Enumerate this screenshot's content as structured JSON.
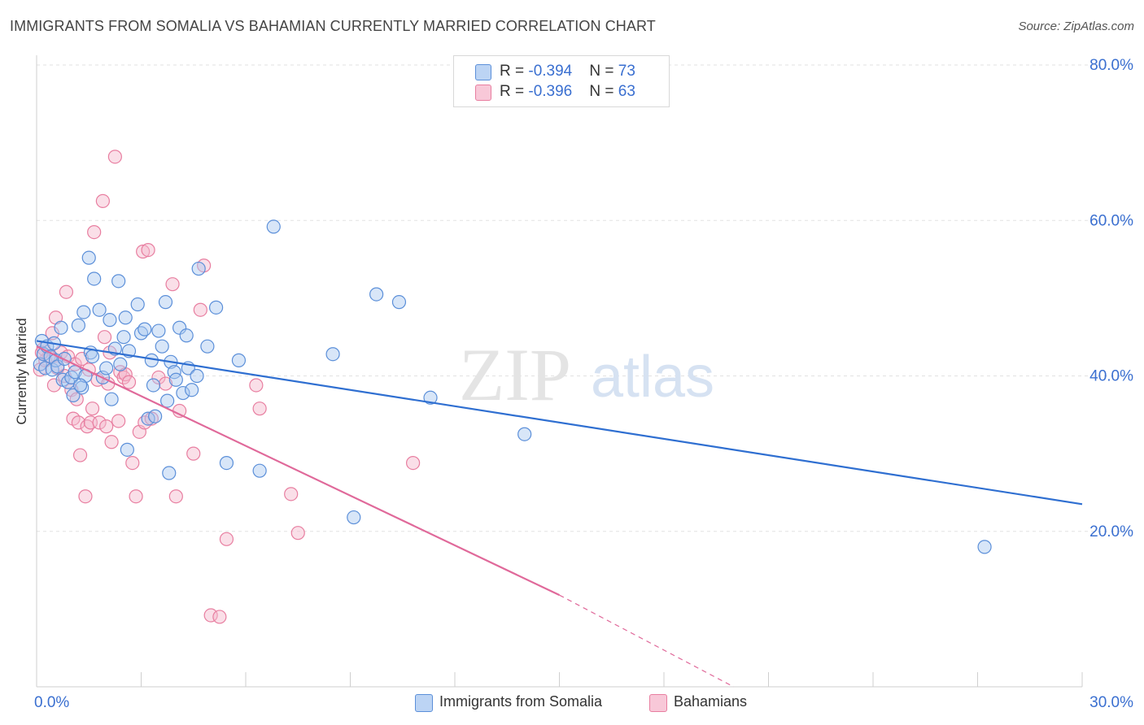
{
  "header": {
    "title": "IMMIGRANTS FROM SOMALIA VS BAHAMIAN CURRENTLY MARRIED CORRELATION CHART",
    "source": "Source: ZipAtlas.com"
  },
  "watermark": {
    "zip": "ZIP",
    "atlas": "atlas"
  },
  "legend_top": {
    "rows": [
      {
        "r_label": "R = ",
        "r_value": "-0.394",
        "n_label": "N = ",
        "n_value": "73"
      },
      {
        "r_label": "R = ",
        "r_value": "-0.396",
        "n_label": "N = ",
        "n_value": "63"
      }
    ]
  },
  "colors": {
    "blue_fill": "#a9c8f0",
    "blue_stroke": "#5b8fd9",
    "blue_line": "#2f6fd1",
    "pink_fill": "#f5b8cc",
    "pink_stroke": "#e87ea0",
    "pink_line": "#e0699a",
    "axis_text": "#3a6fd0",
    "grid": "#e2e2e2"
  },
  "chart_data": {
    "type": "scatter",
    "title": "IMMIGRANTS FROM SOMALIA VS BAHAMIAN CURRENTLY MARRIED CORRELATION CHART",
    "xlabel": "",
    "ylabel": "Currently Married",
    "xlim": [
      0,
      30
    ],
    "ylim": [
      0,
      80
    ],
    "x_tick_labels": [
      "0.0%",
      "30.0%"
    ],
    "y_ticks": [
      20,
      40,
      60,
      80
    ],
    "y_tick_labels": [
      "20.0%",
      "40.0%",
      "60.0%",
      "80.0%"
    ],
    "grid": true,
    "legend_position": "top-center",
    "series": [
      {
        "name": "Immigrants from Somalia",
        "color": "#5b8fd9",
        "trend": {
          "x": [
            0,
            30
          ],
          "y": [
            44.5,
            23.5
          ],
          "dashed_from": null
        },
        "points": [
          [
            0.1,
            41.5
          ],
          [
            0.15,
            44.5
          ],
          [
            0.2,
            42.8
          ],
          [
            0.25,
            41.0
          ],
          [
            0.3,
            43.8
          ],
          [
            0.4,
            42.5
          ],
          [
            0.45,
            40.8
          ],
          [
            0.5,
            44.2
          ],
          [
            0.55,
            42.0
          ],
          [
            0.6,
            41.2
          ],
          [
            0.7,
            46.2
          ],
          [
            0.75,
            39.5
          ],
          [
            0.8,
            42.2
          ],
          [
            0.9,
            39.2
          ],
          [
            1.0,
            39.8
          ],
          [
            1.05,
            37.5
          ],
          [
            1.1,
            40.5
          ],
          [
            1.2,
            46.5
          ],
          [
            1.3,
            38.5
          ],
          [
            1.35,
            48.2
          ],
          [
            1.4,
            40.0
          ],
          [
            1.5,
            55.2
          ],
          [
            1.55,
            43.0
          ],
          [
            1.6,
            42.5
          ],
          [
            1.65,
            52.5
          ],
          [
            1.8,
            48.5
          ],
          [
            1.9,
            39.8
          ],
          [
            2.0,
            41.0
          ],
          [
            2.1,
            47.2
          ],
          [
            2.15,
            37.0
          ],
          [
            2.25,
            43.5
          ],
          [
            2.35,
            52.2
          ],
          [
            2.4,
            41.5
          ],
          [
            2.5,
            45.0
          ],
          [
            2.55,
            47.5
          ],
          [
            2.6,
            30.5
          ],
          [
            2.65,
            43.2
          ],
          [
            2.9,
            49.2
          ],
          [
            3.0,
            45.5
          ],
          [
            3.1,
            46.0
          ],
          [
            3.2,
            34.5
          ],
          [
            3.3,
            42.0
          ],
          [
            3.35,
            38.8
          ],
          [
            3.5,
            45.8
          ],
          [
            3.6,
            43.8
          ],
          [
            3.7,
            49.5
          ],
          [
            3.75,
            36.8
          ],
          [
            3.8,
            27.5
          ],
          [
            3.85,
            41.8
          ],
          [
            3.95,
            40.5
          ],
          [
            4.0,
            39.5
          ],
          [
            4.1,
            46.2
          ],
          [
            4.2,
            37.8
          ],
          [
            4.3,
            45.2
          ],
          [
            4.35,
            41.0
          ],
          [
            4.45,
            38.2
          ],
          [
            4.6,
            40.0
          ],
          [
            4.65,
            53.8
          ],
          [
            4.9,
            43.8
          ],
          [
            5.15,
            48.8
          ],
          [
            5.45,
            28.8
          ],
          [
            5.8,
            42.0
          ],
          [
            6.4,
            27.8
          ],
          [
            6.8,
            59.2
          ],
          [
            8.5,
            42.8
          ],
          [
            9.1,
            21.8
          ],
          [
            9.75,
            50.5
          ],
          [
            10.4,
            49.5
          ],
          [
            11.3,
            37.2
          ],
          [
            14.0,
            32.5
          ],
          [
            27.2,
            18.0
          ],
          [
            3.4,
            34.8
          ],
          [
            1.25,
            38.8
          ]
        ]
      },
      {
        "name": "Bahamians",
        "color": "#e87ea0",
        "trend": {
          "x": [
            0,
            15
          ],
          "y": [
            43.8,
            11.8
          ],
          "dashed_to": [
            20,
            0
          ]
        },
        "points": [
          [
            0.1,
            40.8
          ],
          [
            0.2,
            43.5
          ],
          [
            0.25,
            42.0
          ],
          [
            0.35,
            42.5
          ],
          [
            0.45,
            45.5
          ],
          [
            0.5,
            38.8
          ],
          [
            0.55,
            47.5
          ],
          [
            0.6,
            41.0
          ],
          [
            0.7,
            43.0
          ],
          [
            0.8,
            40.0
          ],
          [
            0.85,
            50.8
          ],
          [
            0.9,
            42.5
          ],
          [
            1.0,
            38.2
          ],
          [
            1.05,
            34.5
          ],
          [
            1.1,
            41.5
          ],
          [
            1.15,
            37.0
          ],
          [
            1.2,
            34.0
          ],
          [
            1.25,
            29.8
          ],
          [
            1.3,
            42.2
          ],
          [
            1.4,
            24.5
          ],
          [
            1.45,
            33.5
          ],
          [
            1.5,
            40.8
          ],
          [
            1.55,
            34.0
          ],
          [
            1.6,
            35.8
          ],
          [
            1.65,
            58.5
          ],
          [
            1.75,
            39.5
          ],
          [
            1.8,
            34.0
          ],
          [
            1.9,
            62.5
          ],
          [
            1.95,
            45.0
          ],
          [
            2.0,
            33.5
          ],
          [
            2.1,
            43.0
          ],
          [
            2.15,
            31.5
          ],
          [
            2.25,
            68.2
          ],
          [
            2.35,
            34.2
          ],
          [
            2.4,
            40.5
          ],
          [
            2.5,
            39.8
          ],
          [
            2.55,
            40.2
          ],
          [
            2.65,
            39.2
          ],
          [
            2.75,
            28.8
          ],
          [
            2.85,
            24.5
          ],
          [
            2.95,
            32.8
          ],
          [
            3.05,
            56.0
          ],
          [
            3.1,
            34.0
          ],
          [
            3.2,
            56.2
          ],
          [
            3.3,
            34.5
          ],
          [
            3.5,
            39.8
          ],
          [
            3.7,
            39.0
          ],
          [
            3.9,
            51.8
          ],
          [
            4.0,
            24.5
          ],
          [
            4.1,
            35.5
          ],
          [
            4.5,
            30.0
          ],
          [
            4.7,
            48.5
          ],
          [
            4.8,
            54.2
          ],
          [
            5.0,
            9.2
          ],
          [
            5.25,
            9.0
          ],
          [
            5.45,
            19.0
          ],
          [
            6.3,
            38.8
          ],
          [
            6.4,
            35.8
          ],
          [
            7.3,
            24.8
          ],
          [
            7.5,
            19.8
          ],
          [
            10.8,
            28.8
          ],
          [
            0.15,
            43.0
          ],
          [
            2.05,
            39.0
          ]
        ]
      }
    ]
  },
  "legend_bottom": {
    "items": [
      {
        "label": "Immigrants from Somalia"
      },
      {
        "label": "Bahamians"
      }
    ]
  }
}
